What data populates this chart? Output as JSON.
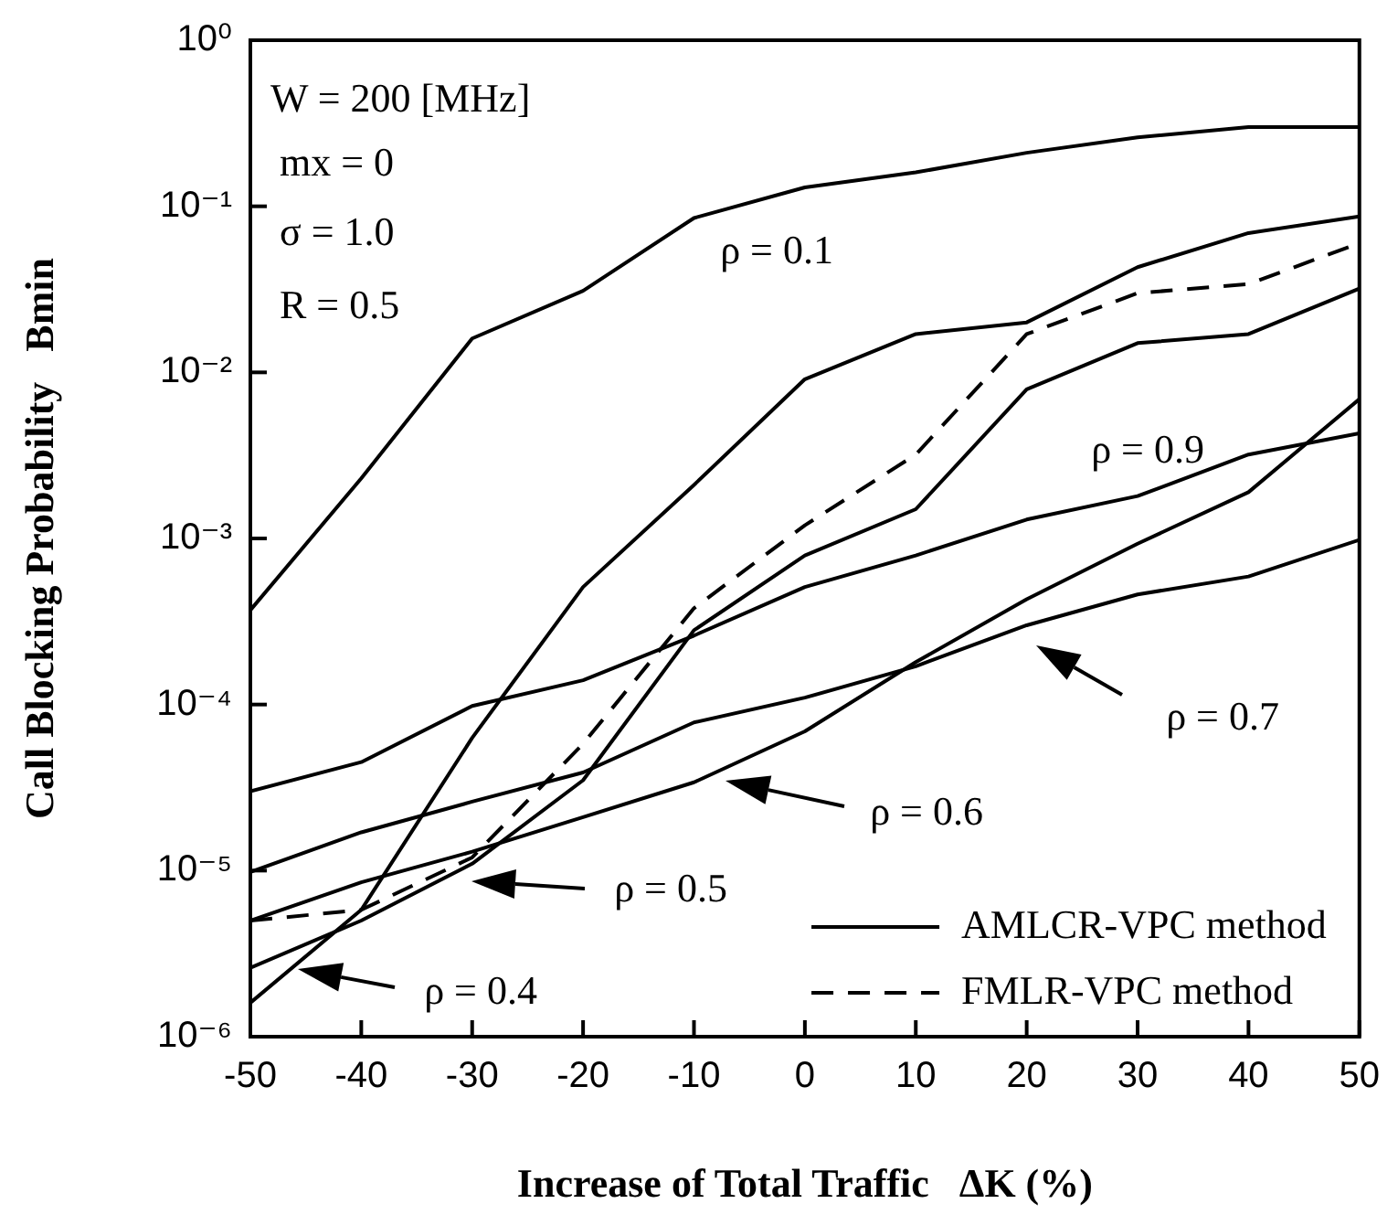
{
  "chart_data": {
    "type": "line",
    "xlabel": "Increase of Total Traffic   ΔK (%)",
    "ylabel": "Call Blocking Probability   Bmin",
    "x": [
      -50,
      -40,
      -30,
      -20,
      -10,
      0,
      10,
      20,
      30,
      40,
      50
    ],
    "xlim": [
      -50,
      50
    ],
    "xticks": [
      -50,
      -40,
      -30,
      -20,
      -10,
      0,
      10,
      20,
      30,
      40,
      50
    ],
    "ylim": [
      1e-06,
      1
    ],
    "yticks": [
      {
        "value": 1e-06,
        "label": "10⁻⁶"
      },
      {
        "value": 1e-05,
        "label": "10⁻⁵"
      },
      {
        "value": 0.0001,
        "label": "10⁻⁴"
      },
      {
        "value": 0.001,
        "label": "10⁻³"
      },
      {
        "value": 0.01,
        "label": "10⁻²"
      },
      {
        "value": 0.1,
        "label": "10⁻¹"
      },
      {
        "value": 1,
        "label": "10⁰"
      }
    ],
    "log": "y",
    "grid": false,
    "legend": "bottom right",
    "marker": "none",
    "series": [
      {
        "name": "AMLCR-VPC method",
        "color": "#000000",
        "line_style": "solid",
        "values": [
          0.00037,
          0.0023,
          0.016,
          0.031,
          0.085,
          0.13,
          0.16,
          0.21,
          0.26,
          0.3,
          0.3
        ]
      },
      {
        "color": "#000000",
        "line_style": "solid",
        "values": [
          1.6e-06,
          5.8e-06,
          6.3e-05,
          0.00051,
          0.0021,
          0.0091,
          0.017,
          0.02,
          0.043,
          0.069,
          0.087
        ]
      },
      {
        "color": "#000000",
        "line_style": "solid",
        "values": [
          2.6e-06,
          5e-06,
          1.1e-05,
          3.5e-05,
          0.00028,
          0.00079,
          0.0015,
          0.0079,
          0.015,
          0.017,
          0.032
        ]
      },
      {
        "name": "FMLR-VPC method",
        "color": "#000000",
        "line_style": "dashed",
        "values": [
          5e-06,
          5.8e-06,
          1.2e-05,
          5.8e-05,
          0.00038,
          0.0012,
          0.0032,
          0.017,
          0.03,
          0.034,
          0.06
        ]
      },
      {
        "color": "#000000",
        "line_style": "solid",
        "values": [
          3e-05,
          4.5e-05,
          9.8e-05,
          0.00014,
          0.00026,
          0.00051,
          0.00079,
          0.0013,
          0.0018,
          0.0032,
          0.0043
        ]
      },
      {
        "color": "#000000",
        "line_style": "solid",
        "values": [
          9.8e-06,
          1.7e-05,
          2.6e-05,
          3.9e-05,
          7.8e-05,
          0.00011,
          0.00017,
          0.0003,
          0.00046,
          0.00059,
          0.00098
        ]
      },
      {
        "color": "#000000",
        "line_style": "solid",
        "values": [
          5e-06,
          8.5e-06,
          1.3e-05,
          2.1e-05,
          3.4e-05,
          6.9e-05,
          0.00018,
          0.00043,
          0.00093,
          0.0019,
          0.0069
        ]
      }
    ],
    "annotations": [
      "W = 200 [MHz]",
      "mx = 0",
      "σ = 1.0",
      "R = 0.5",
      "ρ = 0.1",
      "ρ = 0.9",
      "ρ = 0.7",
      "ρ = 0.6",
      "ρ = 0.5",
      "ρ = 0.4"
    ]
  }
}
